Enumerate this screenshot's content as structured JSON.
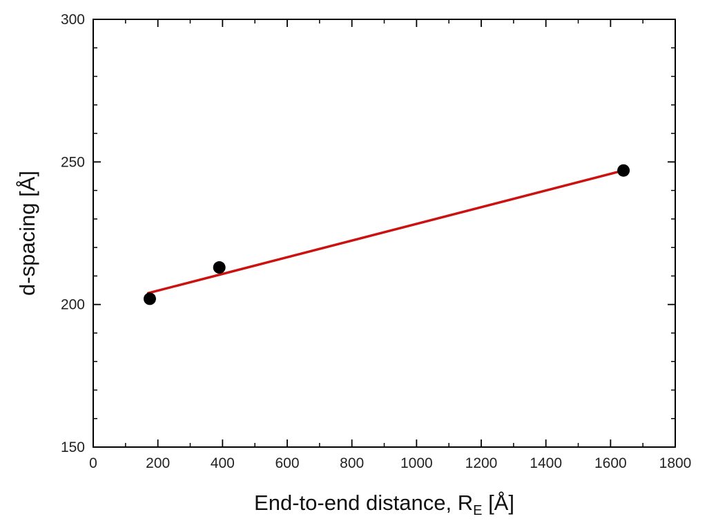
{
  "chart_data": {
    "type": "scatter",
    "title": "",
    "xlabel": "End-to-end distance, R",
    "xlabel_sub": "E",
    "xlabel_unit": " [Å]",
    "ylabel": "d-spacing [Å]",
    "xlim": [
      0,
      1800
    ],
    "ylim": [
      150,
      300
    ],
    "x_major_ticks": [
      0,
      200,
      400,
      600,
      800,
      1000,
      1200,
      1400,
      1600,
      1800
    ],
    "y_major_ticks": [
      150,
      200,
      250,
      300
    ],
    "x_tick_labels": [
      "0",
      "200",
      "400",
      "600",
      "800",
      "1000",
      "1200",
      "1400",
      "1600",
      "1800"
    ],
    "y_tick_labels": [
      "150",
      "200",
      "250",
      "300"
    ],
    "grid": false,
    "legend": "none",
    "series": [
      {
        "kind": "scatter",
        "color": "#000000",
        "points": [
          {
            "x": 175,
            "y": 202
          },
          {
            "x": 390,
            "y": 213
          },
          {
            "x": 1640,
            "y": 247
          }
        ]
      },
      {
        "kind": "fit-line",
        "color": "#cc1111",
        "points": [
          {
            "x": 170,
            "y": 204
          },
          {
            "x": 1640,
            "y": 247
          }
        ]
      }
    ]
  }
}
